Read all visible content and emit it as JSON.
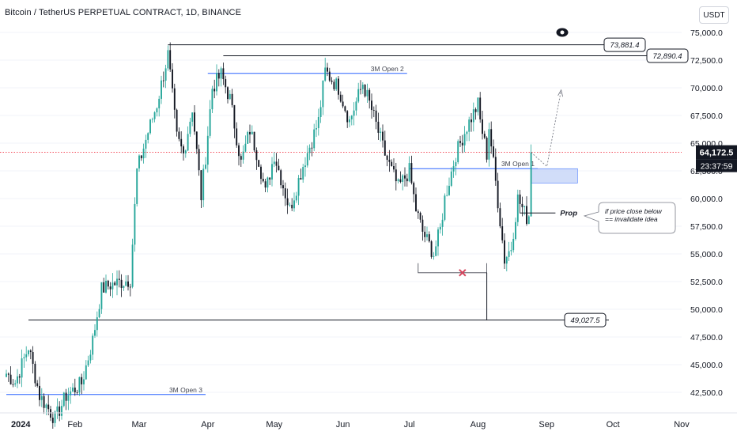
{
  "header": {
    "title": "Bitcoin / TetherUS PERPETUAL CONTRACT, 1D, BINANCE",
    "currency_label": "USDT"
  },
  "colors": {
    "bull": "#26a69a",
    "bear": "#131722",
    "level_line": "#131722",
    "open_line": "#2962ff",
    "current_price_line": "#f23645",
    "zone_fill": "#c9d7f8"
  },
  "chart_data": {
    "type": "candlestick",
    "x_ticks": [
      "2024",
      "Feb",
      "Mar",
      "Apr",
      "May",
      "Jun",
      "Jul",
      "Aug",
      "Sep",
      "Oct",
      "Nov"
    ],
    "y_ticks": [
      "75,000.0",
      "72,500.0",
      "70,000.0",
      "67,500.0",
      "65,000.0",
      "62,500.0",
      "60,000.0",
      "57,500.0",
      "55,000.0",
      "52,500.0",
      "50,000.0",
      "47,500.0",
      "45,000.0",
      "42,500.0"
    ],
    "ylim": [
      40000,
      76000
    ],
    "current_price": {
      "price": "64,172.5",
      "timer": "23:37:59",
      "value": 64172.5
    },
    "levels": [
      {
        "label": "73,881.4",
        "value": 73881.4,
        "from": "2024-03-14"
      },
      {
        "label": "72,890.4",
        "value": 72890.4,
        "from": "2024-04-08"
      },
      {
        "label": "49,027.5",
        "value": 49027.5,
        "from": "2024-01-11"
      }
    ],
    "open_lines": [
      {
        "label": "3M Open 2",
        "value": 71300,
        "from": "2024-04-01",
        "to": "2024-06-30"
      },
      {
        "label": "3M Open 1",
        "value": 62700,
        "from": "2024-07-01",
        "to": "2024-08-28"
      },
      {
        "label": "3M Open 3",
        "value": 42300,
        "from": "2024-01-01",
        "to": "2024-03-31"
      }
    ],
    "annotations": {
      "prop_label": "Prop",
      "note_lines": [
        "if price close below",
        "== invalidate idea"
      ],
      "zone": {
        "from": "2024-08-25",
        "to": "2024-09-15",
        "top": 62700,
        "bottom": 61400
      },
      "prop_line": {
        "value": 58700,
        "from": "2024-08-20",
        "to": "2024-09-05"
      },
      "range_low_box": {
        "value": 53300,
        "from": "2024-07-05",
        "to": "2024-08-05"
      },
      "x_mark": {
        "date": "2024-07-25",
        "value": 53300
      }
    }
  }
}
